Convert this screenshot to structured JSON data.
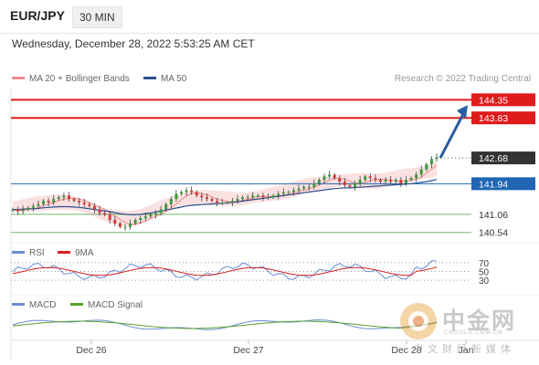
{
  "header": {
    "pair": "EUR/JPY",
    "timeframe": "30 MIN"
  },
  "timestamp": "Wednesday, December 28, 2022 5:53:25 AM CET",
  "legend": {
    "ma20_label": "MA 20 + Bollinger Bands",
    "ma50_label": "MA 50",
    "ma20_color": "#f08a8a",
    "ma50_color": "#2b4f8c",
    "credit": "Research © 2022 Trading Central"
  },
  "rsi_legend": {
    "rsi_label": "RSI",
    "ma_label": "9MA",
    "rsi_color": "#6b8ed6",
    "ma_color": "#d62020"
  },
  "macd_legend": {
    "macd_label": "MACD",
    "signal_label": "MACD Signal",
    "macd_color": "#6b8ed6",
    "signal_color": "#5aa02c"
  },
  "watermark": {
    "cn": "中金网",
    "url": "CNGOLD.COM.CN",
    "sub": "中文财经新媒体"
  },
  "chart_data": {
    "type": "candlestick",
    "instrument": "EUR/JPY",
    "interval": "30 MIN",
    "ylim": [
      140.35,
      144.7
    ],
    "x_ticks": [
      "Dec 26",
      "Dec 27",
      "Dec 28",
      "Jan"
    ],
    "last_price": 142.68,
    "levels": [
      {
        "value": 144.35,
        "type": "resistance",
        "color": "#e01b1b"
      },
      {
        "value": 143.83,
        "type": "resistance",
        "color": "#e01b1b"
      },
      {
        "value": 142.68,
        "type": "last",
        "color": "#333333"
      },
      {
        "value": 141.94,
        "type": "pivot",
        "color": "#1f66b3"
      },
      {
        "value": 141.06,
        "type": "support",
        "color": "#4aa54a"
      },
      {
        "value": 140.54,
        "type": "support",
        "color": "#4aa54a"
      }
    ],
    "closes": [
      141.2,
      141.15,
      141.2,
      141.25,
      141.3,
      141.35,
      141.45,
      141.4,
      141.5,
      141.55,
      141.6,
      141.5,
      141.45,
      141.4,
      141.35,
      141.3,
      141.2,
      141.1,
      141.05,
      140.9,
      140.8,
      140.7,
      140.7,
      140.8,
      140.9,
      140.95,
      141.0,
      141.05,
      141.1,
      141.2,
      141.35,
      141.5,
      141.65,
      141.7,
      141.75,
      141.7,
      141.6,
      141.55,
      141.5,
      141.45,
      141.4,
      141.4,
      141.4,
      141.45,
      141.5,
      141.55,
      141.55,
      141.6,
      141.6,
      141.55,
      141.55,
      141.6,
      141.65,
      141.7,
      141.7,
      141.75,
      141.8,
      141.85,
      141.85,
      141.95,
      142.05,
      142.15,
      142.2,
      142.1,
      142.0,
      141.9,
      141.85,
      141.95,
      142.05,
      142.15,
      142.1,
      142.05,
      142.0,
      142.05,
      142.0,
      142.05,
      141.95,
      142.05,
      142.1,
      142.2,
      142.35,
      142.5,
      142.65,
      142.7
    ],
    "ma50": [
      141.2,
      141.2,
      141.21,
      141.22,
      141.22,
      141.23,
      141.25,
      141.26,
      141.27,
      141.28,
      141.28,
      141.28,
      141.27,
      141.26,
      141.24,
      141.22,
      141.2,
      141.18,
      141.16,
      141.14,
      141.11,
      141.08,
      141.06,
      141.05,
      141.05,
      141.06,
      141.08,
      141.1,
      141.13,
      141.15,
      141.18,
      141.21,
      141.24,
      141.27,
      141.3,
      141.32,
      141.33,
      141.34,
      141.35,
      141.36,
      141.37,
      141.38,
      141.39,
      141.4,
      141.42,
      141.44,
      141.46,
      141.48,
      141.5,
      141.52,
      141.54,
      141.56,
      141.58,
      141.6,
      141.62,
      141.64,
      141.66,
      141.68,
      141.7,
      141.72,
      141.74,
      141.76,
      141.78,
      141.8,
      141.81,
      141.82,
      141.82,
      141.83,
      141.84,
      141.85,
      141.86,
      141.87,
      141.88,
      141.89,
      141.9,
      141.91,
      141.92,
      141.93,
      141.94,
      141.96,
      141.98,
      142.0,
      142.03,
      142.06
    ],
    "rsi": {
      "levels": [
        70,
        50,
        30
      ]
    },
    "macd": {}
  }
}
